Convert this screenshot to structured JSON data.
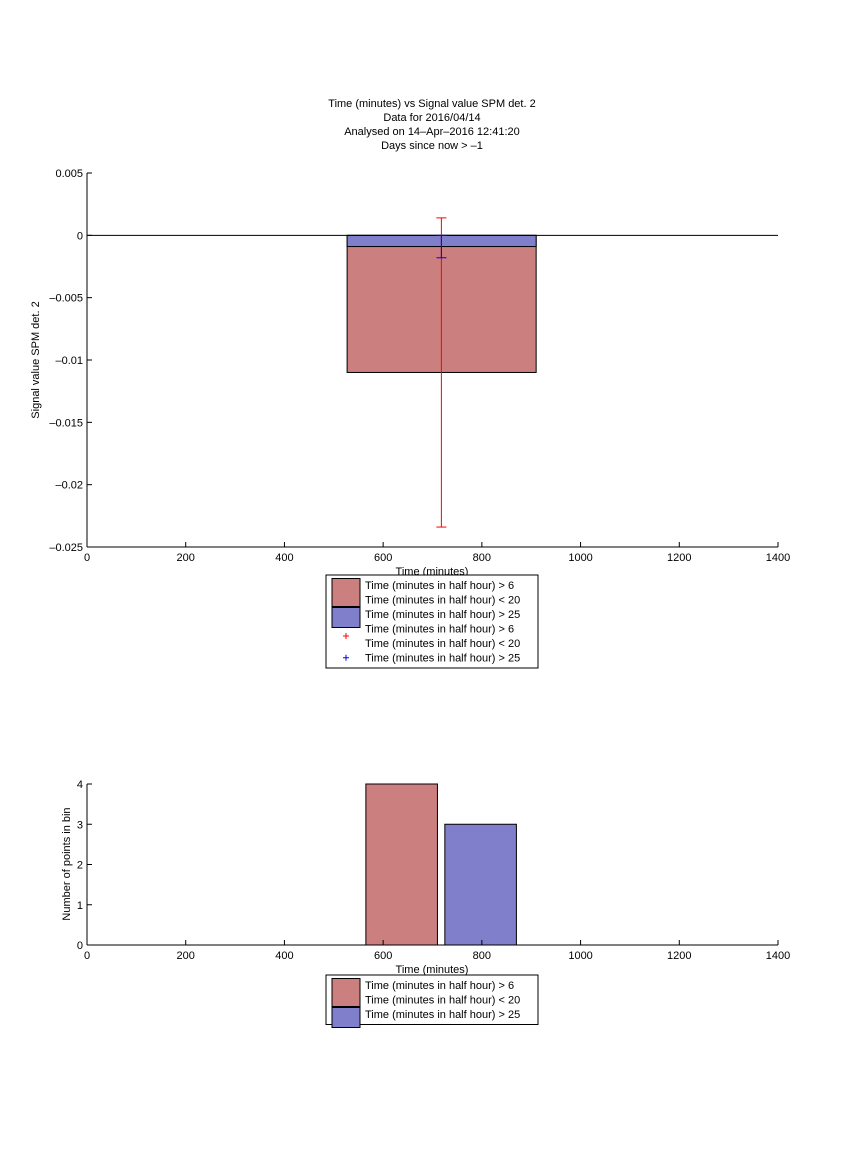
{
  "title_lines": [
    "Time (minutes) vs Signal value SPM det. 2",
    "Data for 2016/04/14",
    "Analysed on 14–Apr–2016 12:41:20",
    "Days since now > –1"
  ],
  "colors": {
    "series1": "#cc7f7f",
    "series2": "#7f7fcc",
    "errorbar1": "#ff0000",
    "errorbar2": "#0000ff"
  },
  "chart_data": [
    {
      "type": "bar",
      "xlabel": "Time (minutes)",
      "ylabel": "Signal value SPM det. 2",
      "xlim": [
        0,
        1400
      ],
      "ylim": [
        -0.025,
        0.005
      ],
      "xticks": [
        "0",
        "200",
        "400",
        "600",
        "800",
        "1000",
        "1200",
        "1400"
      ],
      "yticks": [
        "0.005",
        "0",
        "–0.005",
        "–0.01",
        "–0.015",
        "–0.02",
        "–0.025"
      ],
      "bars": [
        {
          "series": 1,
          "x_start": 527,
          "x_end": 910,
          "value": -0.011
        },
        {
          "series": 2,
          "x_start": 527,
          "x_end": 910,
          "value": -0.0009
        }
      ],
      "errorbars": [
        {
          "series": 1,
          "x": 718,
          "y": -0.011,
          "low": -0.0234,
          "high": 0.0014
        },
        {
          "series": 2,
          "x": 718,
          "y": -0.0009,
          "low": -0.0018,
          "high": 0.0
        }
      ],
      "legend": [
        {
          "kind": "patch",
          "series": 1,
          "lines": [
            "Time (minutes in half hour) > 6",
            "Time (minutes in half hour) < 20"
          ]
        },
        {
          "kind": "patch",
          "series": 2,
          "lines": [
            "Time (minutes in half hour) > 25"
          ]
        },
        {
          "kind": "marker",
          "series": 1,
          "lines": [
            "Time (minutes in half hour) > 6",
            "Time (minutes in half hour) < 20"
          ]
        },
        {
          "kind": "marker",
          "series": 2,
          "lines": [
            "Time (minutes in half hour) > 25"
          ]
        }
      ]
    },
    {
      "type": "bar",
      "xlabel": "Time (minutes)",
      "ylabel": "Number of points in bin",
      "xlim": [
        0,
        1400
      ],
      "ylim": [
        0,
        4
      ],
      "xticks": [
        "0",
        "200",
        "400",
        "600",
        "800",
        "1000",
        "1200",
        "1400"
      ],
      "yticks": [
        "4",
        "3",
        "2",
        "1",
        "0"
      ],
      "bars": [
        {
          "series": 1,
          "x_start": 565,
          "x_end": 710,
          "value": 4
        },
        {
          "series": 2,
          "x_start": 725,
          "x_end": 870,
          "value": 3
        }
      ],
      "legend": [
        {
          "kind": "patch",
          "series": 1,
          "lines": [
            "Time (minutes in half hour) > 6",
            "Time (minutes in half hour) < 20"
          ]
        },
        {
          "kind": "patch",
          "series": 2,
          "lines": [
            "Time (minutes in half hour) > 25"
          ]
        }
      ]
    }
  ]
}
